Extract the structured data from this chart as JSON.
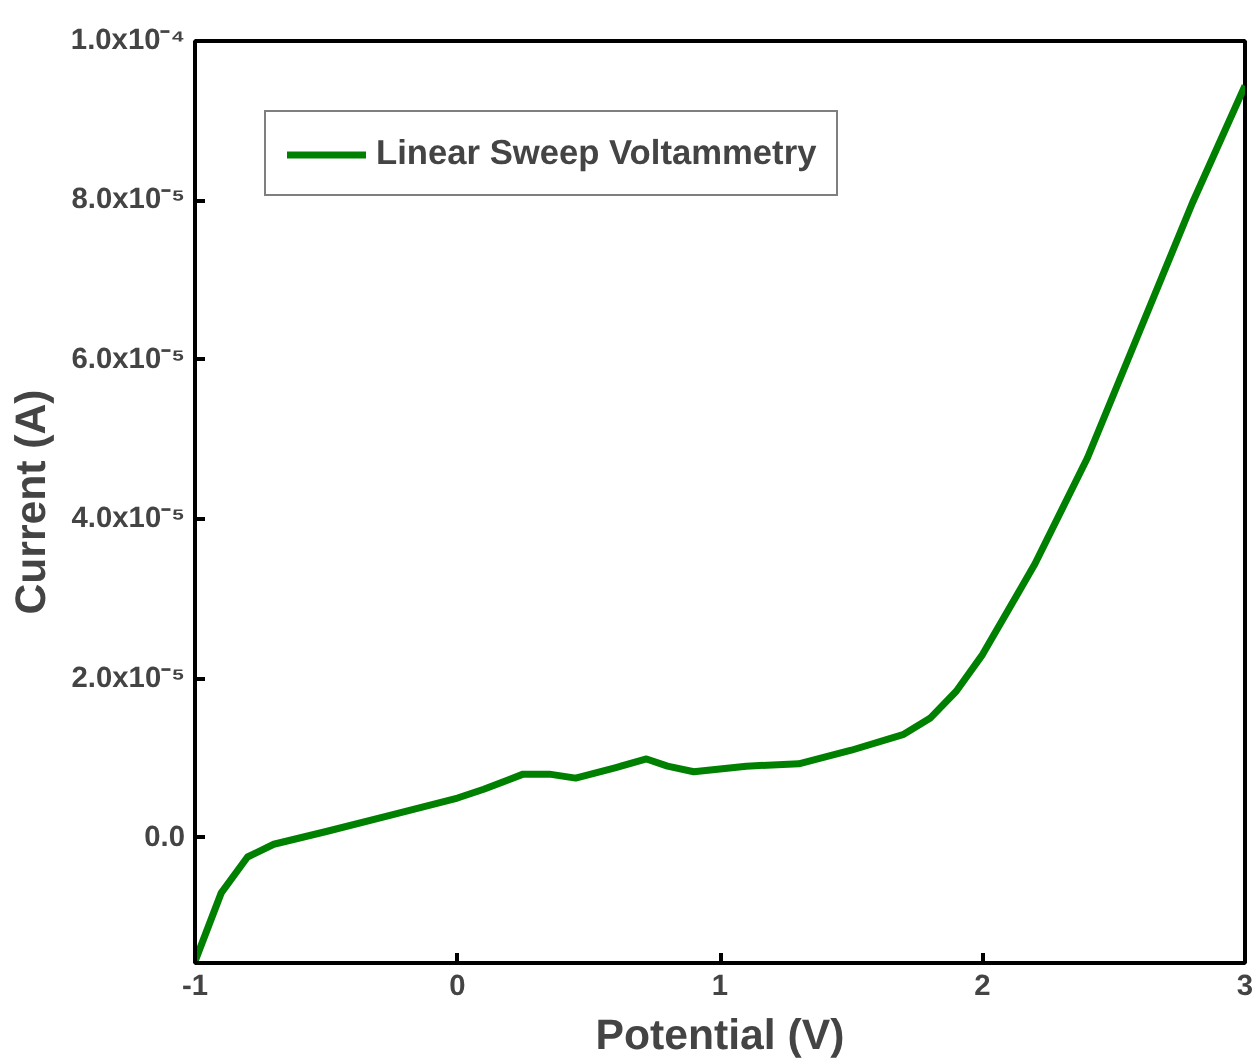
{
  "chart_data": {
    "type": "line",
    "xlabel": "Potential (V)",
    "ylabel": "Current (A)",
    "x": [
      -1,
      -0.9,
      -0.8,
      -0.7,
      -0.5,
      -0.25,
      0,
      0.1,
      0.25,
      0.35,
      0.45,
      0.6,
      0.72,
      0.8,
      0.9,
      1.1,
      1.3,
      1.5,
      1.7,
      1.8,
      1.9,
      2.0,
      2.2,
      2.4,
      2.6,
      2.8,
      3.0
    ],
    "series": [
      {
        "name": "Linear Sweep Voltammetry",
        "color": "#008000",
        "values": [
          -1.55e-05,
          -6.9e-06,
          -2.4e-06,
          -8e-07,
          8e-07,
          2.9e-06,
          5e-06,
          6.1e-06,
          8e-06,
          8e-06,
          7.5e-06,
          8.8e-06,
          9.9e-06,
          9e-06,
          8.3e-06,
          9e-06,
          9.3e-06,
          1.1e-05,
          1.3e-05,
          1.5e-05,
          1.84e-05,
          2.3e-05,
          3.44e-05,
          4.77e-05,
          6.37e-05,
          7.97e-05,
          9.44e-05
        ]
      }
    ],
    "xlim": [
      -1,
      3
    ],
    "xticks": [
      -1,
      0,
      1,
      2,
      3
    ],
    "ylim": [
      -1.57e-05,
      0.0001
    ],
    "yticks": [
      {
        "value": 0,
        "label": "0.0"
      },
      {
        "value": 2e-05,
        "label": "2.0x10⁻⁵"
      },
      {
        "value": 4e-05,
        "label": "4.0x10⁻⁵"
      },
      {
        "value": 6e-05,
        "label": "6.0x10⁻⁵"
      },
      {
        "value": 8e-05,
        "label": "8.0x10⁻⁵"
      },
      {
        "value": 0.0001,
        "label": "1.0x10⁻⁴"
      }
    ],
    "legend": "top left",
    "grid": false,
    "line_style": "solid"
  }
}
